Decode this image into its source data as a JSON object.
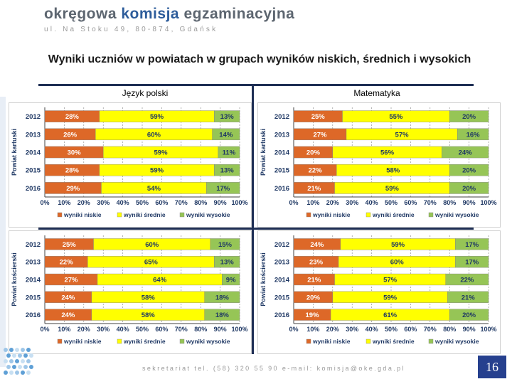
{
  "header": {
    "logo_words": [
      "okręgowa",
      "komisja",
      "egzaminacyjna"
    ],
    "address": "ul. Na Stoku 49, 80-874, Gdańsk"
  },
  "title": "Wyniki uczniów w powiatach w grupach wyników niskich, średnich i wysokich",
  "columns": {
    "left": "Język polski",
    "right": "Matematyka"
  },
  "footer": {
    "contact": "sekretariat tel. (58) 320 55 90 e-mail: komisja@oke.gda.pl",
    "page": "16"
  },
  "colors": {
    "niskie": "#dd6828",
    "srednie": "#ffff00",
    "wysokie": "#96c556",
    "grid": "#7f7f7f",
    "frame": "#1f2f55",
    "page_badge": "#26408e"
  },
  "chart_data": [
    {
      "type": "bar",
      "stacked": "percent",
      "orientation": "horizontal",
      "panel": "Powiat kartuski — Język polski",
      "ylabel": "Powiat kartuski",
      "categories": [
        "2012",
        "2013",
        "2014",
        "2015",
        "2016"
      ],
      "xticks": [
        "0%",
        "10%",
        "20%",
        "30%",
        "40%",
        "50%",
        "60%",
        "70%",
        "80%",
        "90%",
        "100%"
      ],
      "series": [
        {
          "name": "wyniki niskie",
          "values": [
            28,
            26,
            30,
            28,
            29
          ]
        },
        {
          "name": "wyniki  średnie",
          "values": [
            59,
            60,
            59,
            59,
            54
          ]
        },
        {
          "name": "wyniki wysokie",
          "values": [
            13,
            14,
            11,
            13,
            17
          ]
        }
      ],
      "legend": "bottom"
    },
    {
      "type": "bar",
      "stacked": "percent",
      "orientation": "horizontal",
      "panel": "Powiat kartuski — Matematyka",
      "ylabel": "Powiat kartuski",
      "categories": [
        "2012",
        "2013",
        "2014",
        "2015",
        "2016"
      ],
      "xticks": [
        "0%",
        "10%",
        "20%",
        "30%",
        "40%",
        "50%",
        "60%",
        "70%",
        "80%",
        "90%",
        "100%"
      ],
      "series": [
        {
          "name": "wyniki niskie",
          "values": [
            25,
            27,
            20,
            22,
            21
          ]
        },
        {
          "name": "wyniki  średnie",
          "values": [
            55,
            57,
            56,
            58,
            59
          ]
        },
        {
          "name": "wyniki wysokie",
          "values": [
            20,
            16,
            24,
            20,
            20
          ]
        }
      ],
      "legend": "bottom"
    },
    {
      "type": "bar",
      "stacked": "percent",
      "orientation": "horizontal",
      "panel": "Powiat kościerski — Język polski",
      "ylabel": "Powiat kościerski",
      "categories": [
        "2012",
        "2013",
        "2014",
        "2015",
        "2016"
      ],
      "xticks": [
        "0%",
        "10%",
        "20%",
        "30%",
        "40%",
        "50%",
        "60%",
        "70%",
        "80%",
        "90%",
        "100%"
      ],
      "series": [
        {
          "name": "wyniki niskie",
          "values": [
            25,
            22,
            27,
            24,
            24
          ]
        },
        {
          "name": "wyniki  średnie",
          "values": [
            60,
            65,
            64,
            58,
            58
          ]
        },
        {
          "name": "wyniki wysokie",
          "values": [
            15,
            13,
            9,
            18,
            18
          ]
        }
      ],
      "legend": "bottom"
    },
    {
      "type": "bar",
      "stacked": "percent",
      "orientation": "horizontal",
      "panel": "Powiat kościerski — Matematyka",
      "ylabel": "Powiat kościerski",
      "categories": [
        "2012",
        "2013",
        "2014",
        "2015",
        "2016"
      ],
      "xticks": [
        "0%",
        "10%",
        "20%",
        "30%",
        "40%",
        "50%",
        "60%",
        "70%",
        "80%",
        "90%",
        "100%"
      ],
      "series": [
        {
          "name": "wyniki niskie",
          "values": [
            24,
            23,
            21,
            20,
            19
          ]
        },
        {
          "name": "wyniki  średnie",
          "values": [
            59,
            60,
            57,
            59,
            61
          ]
        },
        {
          "name": "wyniki wysokie",
          "values": [
            17,
            17,
            22,
            21,
            20
          ]
        }
      ],
      "legend": "bottom"
    }
  ]
}
